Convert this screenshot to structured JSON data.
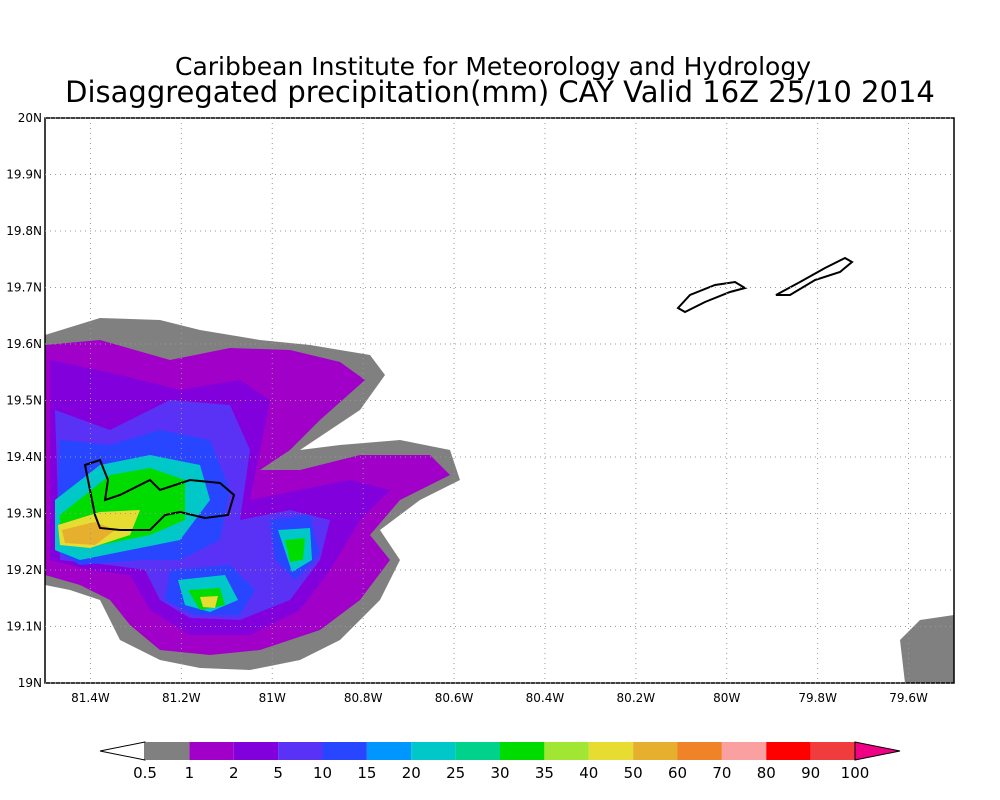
{
  "title": "Caribbean Institute for Meteorology and Hydrology",
  "subtitle": "Disaggregated precipitation(mm) CAY Valid 16Z 25/10 2014",
  "map": {
    "xlim": [
      -81.5,
      -79.5
    ],
    "ylim": [
      19,
      20
    ],
    "xticks": [
      {
        "value": -81.4,
        "label": "81.4W"
      },
      {
        "value": -81.2,
        "label": "81.2W"
      },
      {
        "value": -81,
        "label": "81W"
      },
      {
        "value": -80.8,
        "label": "80.8W"
      },
      {
        "value": -80.6,
        "label": "80.6W"
      },
      {
        "value": -80.4,
        "label": "80.4W"
      },
      {
        "value": -80.2,
        "label": "80.2W"
      },
      {
        "value": -80,
        "label": "80W"
      },
      {
        "value": -79.8,
        "label": "79.8W"
      },
      {
        "value": -79.6,
        "label": "79.6W"
      }
    ],
    "yticks": [
      {
        "value": 19,
        "label": "19N"
      },
      {
        "value": 19.1,
        "label": "19.1N"
      },
      {
        "value": 19.2,
        "label": "19.2N"
      },
      {
        "value": 19.3,
        "label": "19.3N"
      },
      {
        "value": 19.4,
        "label": "19.4N"
      },
      {
        "value": 19.5,
        "label": "19.5N"
      },
      {
        "value": 19.6,
        "label": "19.6N"
      },
      {
        "value": 19.7,
        "label": "19.7N"
      },
      {
        "value": 19.8,
        "label": "19.8N"
      },
      {
        "value": 19.9,
        "label": "19.9N"
      },
      {
        "value": 20,
        "label": "20N"
      }
    ]
  },
  "colorbar": {
    "levels": [
      0.5,
      1,
      2,
      5,
      10,
      15,
      20,
      25,
      30,
      35,
      40,
      50,
      60,
      70,
      80,
      90,
      100
    ],
    "colors": [
      "#ffffff",
      "#808080",
      "#a000c8",
      "#8200dc",
      "#5a32f5",
      "#2846ff",
      "#0096ff",
      "#00c8c8",
      "#00d28c",
      "#00dc00",
      "#a0e632",
      "#e6dc32",
      "#e6af2d",
      "#f08228",
      "#faa0a0",
      "#ff0000",
      "#f03c3c",
      "#f00082"
    ]
  }
}
